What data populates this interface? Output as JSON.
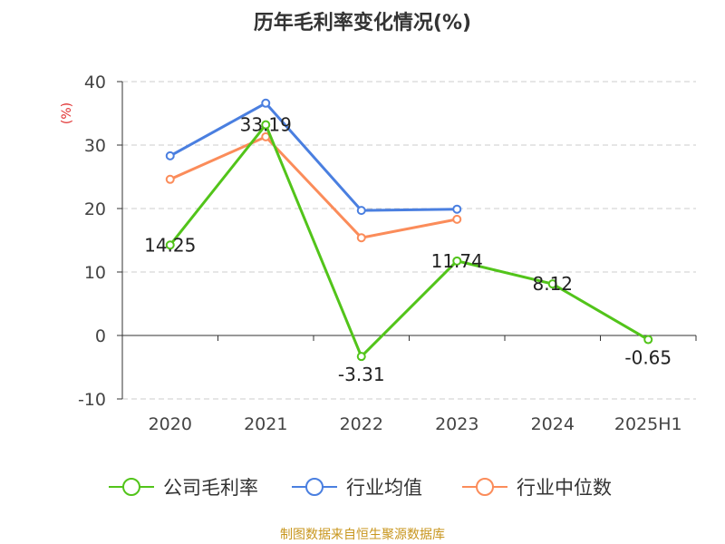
{
  "chart_data": {
    "type": "line",
    "title": "历年毛利率变化情况(%)",
    "ylabel": "(%)",
    "xlabel": "",
    "categories": [
      "2020",
      "2021",
      "2022",
      "2023",
      "2024",
      "2025H1"
    ],
    "ylim": [
      -10,
      40
    ],
    "yticks": [
      -10,
      0,
      10,
      20,
      30,
      40
    ],
    "grid": true,
    "legend_position": "bottom",
    "series": [
      {
        "name": "公司毛利率",
        "color": "#52c41a",
        "values": [
          14.25,
          33.19,
          -3.31,
          11.74,
          8.12,
          -0.65
        ],
        "labels": [
          "14.25",
          "33.19",
          "-3.31",
          "11.74",
          "8.12",
          "-0.65"
        ]
      },
      {
        "name": "行业均值",
        "color": "#4a7fe0",
        "values": [
          28.3,
          36.6,
          19.7,
          19.9,
          null,
          null
        ]
      },
      {
        "name": "行业中位数",
        "color": "#fb8c5a",
        "values": [
          24.6,
          31.3,
          15.4,
          18.3,
          null,
          null
        ]
      }
    ]
  },
  "source": "制图数据来自恒生聚源数据库"
}
